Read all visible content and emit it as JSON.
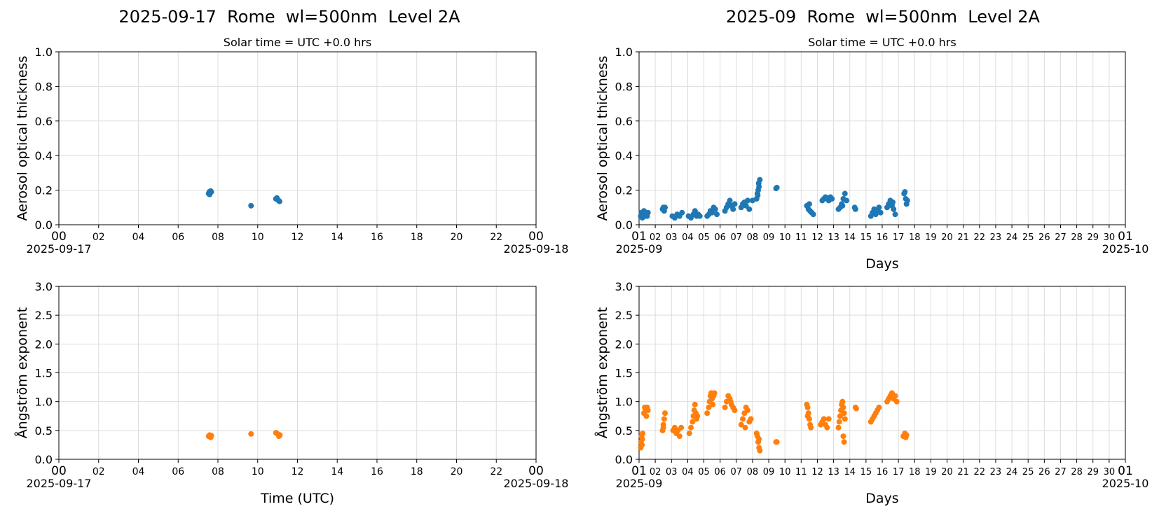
{
  "titles": {
    "left": "2025-09-17  Rome  wl=500nm  Level 2A",
    "right": "2025-09  Rome  wl=500nm  Level 2A"
  },
  "colors": {
    "aod": "#1f77b4",
    "angstrom": "#ff7f0e",
    "grid": "#dddddd"
  },
  "chart_data": [
    {
      "type": "scatter",
      "subtitle": "Solar time = UTC +0.0 hrs",
      "xlabel": "",
      "ylabel": "Aerosol optical thickness",
      "xlim": [
        "2025-09-17 00:00",
        "2025-09-18 00:00"
      ],
      "ylim": [
        0,
        1.0
      ],
      "yticks": [
        "0.0",
        "0.2",
        "0.4",
        "0.6",
        "0.8",
        "1.0"
      ],
      "xticks": [
        "00",
        "02",
        "04",
        "06",
        "08",
        "10",
        "12",
        "14",
        "16",
        "18",
        "20",
        "22",
        "00"
      ],
      "xtick_secondary": [
        "2025-09-17",
        "2025-09-18"
      ],
      "grid": true,
      "series": [
        {
          "color": "#1f77b4",
          "points": [
            [
              "2025-09-17 07:32",
              0.18
            ],
            [
              "2025-09-17 07:34",
              0.19
            ],
            [
              "2025-09-17 07:36",
              0.185
            ],
            [
              "2025-09-17 07:38",
              0.195
            ],
            [
              "2025-09-17 07:40",
              0.19
            ],
            [
              "2025-09-17 07:35",
              0.175
            ],
            [
              "2025-09-17 09:40",
              0.11
            ],
            [
              "2025-09-17 10:55",
              0.15
            ],
            [
              "2025-09-17 11:00",
              0.145
            ],
            [
              "2025-09-17 11:03",
              0.14
            ],
            [
              "2025-09-17 11:06",
              0.135
            ],
            [
              "2025-09-17 10:58",
              0.155
            ]
          ]
        }
      ]
    },
    {
      "type": "scatter",
      "subtitle": "Solar time = UTC +0.0 hrs",
      "xlabel": "Days",
      "ylabel": "Aerosol optical thickness",
      "xlim": [
        "2025-09-01",
        "2025-10-01"
      ],
      "ylim": [
        0,
        1.0
      ],
      "yticks": [
        "0.0",
        "0.2",
        "0.4",
        "0.6",
        "0.8",
        "1.0"
      ],
      "xticks": [
        "01",
        "02",
        "03",
        "04",
        "05",
        "06",
        "07",
        "08",
        "09",
        "10",
        "11",
        "12",
        "13",
        "14",
        "15",
        "16",
        "17",
        "18",
        "19",
        "20",
        "21",
        "22",
        "23",
        "24",
        "25",
        "26",
        "27",
        "28",
        "29",
        "30",
        "01"
      ],
      "xtick_secondary": [
        "2025-09",
        "2025-10"
      ],
      "grid": true,
      "series": [
        {
          "color": "#1f77b4",
          "points": [
            [
              0.1,
              0.05
            ],
            [
              0.15,
              0.07
            ],
            [
              0.2,
              0.04
            ],
            [
              0.25,
              0.06
            ],
            [
              0.3,
              0.08
            ],
            [
              0.35,
              0.05
            ],
            [
              0.4,
              0.07
            ],
            [
              0.45,
              0.06
            ],
            [
              0.5,
              0.05
            ],
            [
              0.55,
              0.07
            ],
            [
              1.45,
              0.09
            ],
            [
              1.5,
              0.1
            ],
            [
              1.55,
              0.08
            ],
            [
              1.6,
              0.1
            ],
            [
              2.05,
              0.05
            ],
            [
              2.2,
              0.04
            ],
            [
              2.35,
              0.06
            ],
            [
              2.5,
              0.05
            ],
            [
              2.65,
              0.07
            ],
            [
              3.05,
              0.05
            ],
            [
              3.2,
              0.04
            ],
            [
              3.35,
              0.06
            ],
            [
              3.45,
              0.08
            ],
            [
              3.55,
              0.05
            ],
            [
              3.65,
              0.06
            ],
            [
              3.75,
              0.05
            ],
            [
              4.2,
              0.05
            ],
            [
              4.3,
              0.06
            ],
            [
              4.4,
              0.08
            ],
            [
              4.5,
              0.07
            ],
            [
              4.6,
              0.1
            ],
            [
              4.7,
              0.09
            ],
            [
              4.8,
              0.06
            ],
            [
              5.3,
              0.08
            ],
            [
              5.4,
              0.1
            ],
            [
              5.5,
              0.12
            ],
            [
              5.6,
              0.14
            ],
            [
              5.7,
              0.11
            ],
            [
              5.8,
              0.09
            ],
            [
              5.9,
              0.12
            ],
            [
              6.3,
              0.1
            ],
            [
              6.4,
              0.12
            ],
            [
              6.5,
              0.13
            ],
            [
              6.6,
              0.11
            ],
            [
              6.7,
              0.14
            ],
            [
              6.8,
              0.09
            ],
            [
              7.0,
              0.14
            ],
            [
              7.25,
              0.15
            ],
            [
              7.3,
              0.18
            ],
            [
              7.35,
              0.2
            ],
            [
              7.4,
              0.22
            ],
            [
              7.45,
              0.26
            ],
            [
              7.38,
              0.24
            ],
            [
              7.32,
              0.17
            ],
            [
              8.45,
              0.21
            ],
            [
              8.5,
              0.215
            ],
            [
              10.35,
              0.11
            ],
            [
              10.45,
              0.09
            ],
            [
              10.55,
              0.08
            ],
            [
              10.65,
              0.07
            ],
            [
              10.75,
              0.06
            ],
            [
              10.5,
              0.12
            ],
            [
              11.3,
              0.14
            ],
            [
              11.4,
              0.15
            ],
            [
              11.5,
              0.16
            ],
            [
              11.6,
              0.15
            ],
            [
              11.7,
              0.14
            ],
            [
              11.8,
              0.16
            ],
            [
              11.9,
              0.15
            ],
            [
              12.3,
              0.09
            ],
            [
              12.4,
              0.1
            ],
            [
              12.5,
              0.12
            ],
            [
              12.6,
              0.15
            ],
            [
              12.7,
              0.18
            ],
            [
              12.8,
              0.14
            ],
            [
              12.55,
              0.11
            ],
            [
              13.3,
              0.1
            ],
            [
              13.35,
              0.09
            ],
            [
              14.3,
              0.05
            ],
            [
              14.4,
              0.07
            ],
            [
              14.5,
              0.09
            ],
            [
              14.6,
              0.06
            ],
            [
              14.7,
              0.08
            ],
            [
              14.8,
              0.1
            ],
            [
              14.9,
              0.07
            ],
            [
              15.3,
              0.1
            ],
            [
              15.4,
              0.12
            ],
            [
              15.5,
              0.14
            ],
            [
              15.6,
              0.11
            ],
            [
              15.7,
              0.09
            ],
            [
              15.8,
              0.06
            ],
            [
              15.65,
              0.13
            ],
            [
              16.35,
              0.18
            ],
            [
              16.4,
              0.19
            ],
            [
              16.45,
              0.15
            ],
            [
              16.5,
              0.12
            ],
            [
              16.55,
              0.14
            ]
          ]
        }
      ]
    },
    {
      "type": "scatter",
      "xlabel": "Time (UTC)",
      "ylabel": "Ångström exponent",
      "xlim": [
        "2025-09-17 00:00",
        "2025-09-18 00:00"
      ],
      "ylim": [
        0,
        3.0
      ],
      "yticks": [
        "0.0",
        "0.5",
        "1.0",
        "1.5",
        "2.0",
        "2.5",
        "3.0"
      ],
      "xticks": [
        "00",
        "02",
        "04",
        "06",
        "08",
        "10",
        "12",
        "14",
        "16",
        "18",
        "20",
        "22",
        "00"
      ],
      "xtick_secondary": [
        "2025-09-17",
        "2025-09-18"
      ],
      "grid": true,
      "series": [
        {
          "color": "#ff7f0e",
          "points": [
            [
              "2025-09-17 07:32",
              0.4
            ],
            [
              "2025-09-17 07:35",
              0.42
            ],
            [
              "2025-09-17 07:38",
              0.38
            ],
            [
              "2025-09-17 07:40",
              0.41
            ],
            [
              "2025-09-17 09:40",
              0.44
            ],
            [
              "2025-09-17 10:55",
              0.46
            ],
            [
              "2025-09-17 11:00",
              0.44
            ],
            [
              "2025-09-17 11:04",
              0.4
            ],
            [
              "2025-09-17 11:07",
              0.42
            ]
          ]
        }
      ]
    },
    {
      "type": "scatter",
      "xlabel": "Days",
      "ylabel": "Ångström exponent",
      "xlim": [
        "2025-09-01",
        "2025-10-01"
      ],
      "ylim": [
        0,
        3.0
      ],
      "yticks": [
        "0.0",
        "0.5",
        "1.0",
        "1.5",
        "2.0",
        "2.5",
        "3.0"
      ],
      "xticks": [
        "01",
        "02",
        "03",
        "04",
        "05",
        "06",
        "07",
        "08",
        "09",
        "10",
        "11",
        "12",
        "13",
        "14",
        "15",
        "16",
        "17",
        "18",
        "19",
        "20",
        "21",
        "22",
        "23",
        "24",
        "25",
        "26",
        "27",
        "28",
        "29",
        "30",
        "01"
      ],
      "xtick_secondary": [
        "2025-09",
        "2025-10"
      ],
      "grid": true,
      "series": [
        {
          "color": "#ff7f0e",
          "points": [
            [
              0.1,
              0.2
            ],
            [
              0.12,
              0.3
            ],
            [
              0.15,
              0.4
            ],
            [
              0.18,
              0.25
            ],
            [
              0.2,
              0.35
            ],
            [
              0.22,
              0.45
            ],
            [
              0.3,
              0.8
            ],
            [
              0.35,
              0.9
            ],
            [
              0.4,
              0.85
            ],
            [
              0.45,
              0.75
            ],
            [
              0.5,
              0.9
            ],
            [
              0.55,
              0.85
            ],
            [
              1.45,
              0.5
            ],
            [
              1.5,
              0.6
            ],
            [
              1.55,
              0.7
            ],
            [
              1.6,
              0.8
            ],
            [
              1.5,
              0.55
            ],
            [
              2.1,
              0.5
            ],
            [
              2.2,
              0.55
            ],
            [
              2.3,
              0.45
            ],
            [
              2.4,
              0.5
            ],
            [
              2.5,
              0.4
            ],
            [
              2.6,
              0.55
            ],
            [
              3.1,
              0.45
            ],
            [
              3.2,
              0.55
            ],
            [
              3.3,
              0.65
            ],
            [
              3.35,
              0.75
            ],
            [
              3.4,
              0.85
            ],
            [
              3.45,
              0.95
            ],
            [
              3.5,
              0.8
            ],
            [
              3.55,
              0.7
            ],
            [
              3.6,
              0.75
            ],
            [
              4.2,
              0.8
            ],
            [
              4.3,
              0.9
            ],
            [
              4.35,
              1.0
            ],
            [
              4.4,
              1.1
            ],
            [
              4.45,
              1.15
            ],
            [
              4.5,
              1.05
            ],
            [
              4.55,
              0.95
            ],
            [
              4.6,
              1.1
            ],
            [
              4.65,
              1.15
            ],
            [
              5.3,
              0.9
            ],
            [
              5.4,
              1.0
            ],
            [
              5.5,
              1.1
            ],
            [
              5.6,
              1.05
            ],
            [
              5.7,
              0.95
            ],
            [
              5.8,
              0.9
            ],
            [
              5.9,
              0.85
            ],
            [
              5.65,
              1.0
            ],
            [
              6.3,
              0.6
            ],
            [
              6.4,
              0.7
            ],
            [
              6.5,
              0.8
            ],
            [
              6.6,
              0.9
            ],
            [
              6.7,
              0.85
            ],
            [
              6.8,
              0.65
            ],
            [
              6.9,
              0.7
            ],
            [
              6.55,
              0.55
            ],
            [
              7.25,
              0.45
            ],
            [
              7.3,
              0.4
            ],
            [
              7.35,
              0.3
            ],
            [
              7.4,
              0.2
            ],
            [
              7.45,
              0.15
            ],
            [
              7.4,
              0.35
            ],
            [
              8.45,
              0.3
            ],
            [
              8.5,
              0.3
            ],
            [
              10.35,
              0.95
            ],
            [
              10.4,
              0.9
            ],
            [
              10.45,
              0.8
            ],
            [
              10.5,
              0.7
            ],
            [
              10.55,
              0.6
            ],
            [
              10.6,
              0.55
            ],
            [
              10.4,
              0.75
            ],
            [
              11.2,
              0.6
            ],
            [
              11.3,
              0.65
            ],
            [
              11.4,
              0.7
            ],
            [
              11.5,
              0.6
            ],
            [
              11.6,
              0.55
            ],
            [
              11.7,
              0.7
            ],
            [
              12.3,
              0.55
            ],
            [
              12.35,
              0.65
            ],
            [
              12.4,
              0.75
            ],
            [
              12.45,
              0.85
            ],
            [
              12.5,
              0.95
            ],
            [
              12.55,
              1.0
            ],
            [
              12.6,
              0.9
            ],
            [
              12.65,
              0.8
            ],
            [
              12.7,
              0.7
            ],
            [
              12.6,
              0.4
            ],
            [
              12.65,
              0.3
            ],
            [
              13.35,
              0.9
            ],
            [
              13.4,
              0.88
            ],
            [
              14.3,
              0.65
            ],
            [
              14.4,
              0.7
            ],
            [
              14.5,
              0.75
            ],
            [
              14.6,
              0.8
            ],
            [
              14.7,
              0.85
            ],
            [
              14.8,
              0.9
            ],
            [
              15.3,
              1.0
            ],
            [
              15.4,
              1.05
            ],
            [
              15.5,
              1.1
            ],
            [
              15.6,
              1.15
            ],
            [
              15.7,
              1.05
            ],
            [
              15.8,
              1.1
            ],
            [
              15.9,
              1.0
            ],
            [
              16.3,
              0.4
            ],
            [
              16.4,
              0.45
            ],
            [
              16.45,
              0.38
            ],
            [
              16.5,
              0.42
            ]
          ]
        }
      ]
    }
  ]
}
